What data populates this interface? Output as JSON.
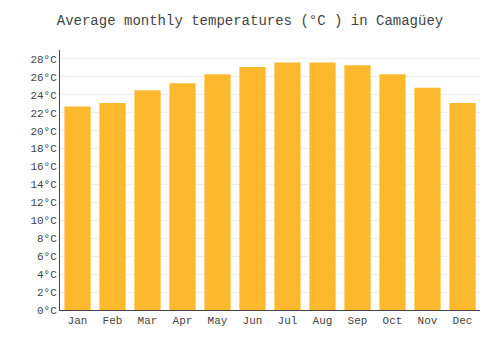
{
  "chart_data": {
    "type": "bar",
    "title": "Average monthly temperatures (°C ) in Camagüey",
    "categories": [
      "Jan",
      "Feb",
      "Mar",
      "Apr",
      "May",
      "Jun",
      "Jul",
      "Aug",
      "Sep",
      "Oct",
      "Nov",
      "Dec"
    ],
    "values": [
      22.7,
      23.1,
      24.5,
      25.3,
      26.3,
      27.1,
      27.6,
      27.6,
      27.3,
      26.3,
      24.8,
      23.1
    ],
    "color": "#FDB92E",
    "ylim": [
      0,
      29
    ],
    "yticks": [
      {
        "value": 0,
        "label": "0°C"
      },
      {
        "value": 2,
        "label": "2°C"
      },
      {
        "value": 4,
        "label": "4°C"
      },
      {
        "value": 6,
        "label": "6°C"
      },
      {
        "value": 8,
        "label": "8°C"
      },
      {
        "value": 10,
        "label": "10°C"
      },
      {
        "value": 12,
        "label": "12°C"
      },
      {
        "value": 14,
        "label": "14°C"
      },
      {
        "value": 16,
        "label": "16°C"
      },
      {
        "value": 18,
        "label": "18°C"
      },
      {
        "value": 20,
        "label": "20°C"
      },
      {
        "value": 22,
        "label": "22°C"
      },
      {
        "value": 24,
        "label": "24°C"
      },
      {
        "value": 26,
        "label": "26°C"
      },
      {
        "value": 28,
        "label": "28°C"
      }
    ],
    "grid": true
  }
}
